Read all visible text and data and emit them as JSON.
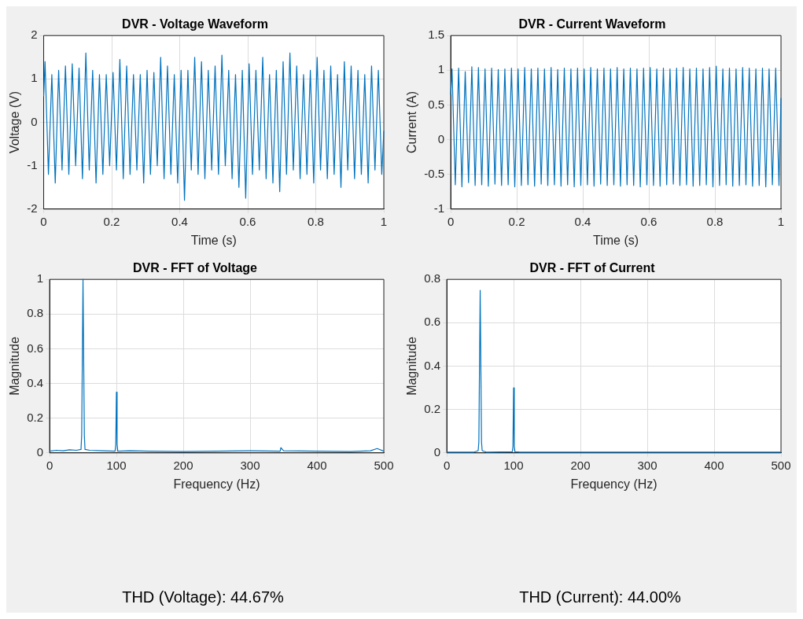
{
  "chart_data": [
    {
      "type": "line",
      "title": "DVR - Voltage Waveform",
      "xlabel": "Time (s)",
      "ylabel": "Voltage (V)",
      "xlim": [
        0,
        1
      ],
      "xticks": [
        0,
        0.2,
        0.4,
        0.6,
        0.8,
        1
      ],
      "ylim": [
        -2,
        2
      ],
      "yticks": [
        -2,
        -1,
        0,
        1,
        2
      ],
      "grid": true,
      "series": [
        {
          "color": "#0072bd",
          "x": [
            0,
            0.004,
            0.014,
            0.024,
            0.034,
            0.044,
            0.054,
            0.064,
            0.074,
            0.084,
            0.094,
            0.104,
            0.114,
            0.124,
            0.134,
            0.144,
            0.154,
            0.164,
            0.174,
            0.184,
            0.194,
            0.204,
            0.214,
            0.224,
            0.234,
            0.244,
            0.254,
            0.264,
            0.274,
            0.284,
            0.294,
            0.304,
            0.314,
            0.324,
            0.334,
            0.344,
            0.354,
            0.364,
            0.374,
            0.384,
            0.394,
            0.404,
            0.414,
            0.424,
            0.434,
            0.444,
            0.454,
            0.464,
            0.474,
            0.484,
            0.494,
            0.504,
            0.514,
            0.524,
            0.534,
            0.544,
            0.554,
            0.564,
            0.574,
            0.584,
            0.594,
            0.604,
            0.614,
            0.624,
            0.634,
            0.644,
            0.654,
            0.664,
            0.674,
            0.684,
            0.694,
            0.704,
            0.714,
            0.724,
            0.734,
            0.744,
            0.754,
            0.764,
            0.774,
            0.784,
            0.794,
            0.804,
            0.814,
            0.824,
            0.834,
            0.844,
            0.854,
            0.864,
            0.874,
            0.884,
            0.894,
            0.904,
            0.914,
            0.924,
            0.934,
            0.944,
            0.954,
            0.964,
            0.974,
            0.984,
            0.994,
            1
          ],
          "values": [
            0.6,
            1.4,
            -1.2,
            1.1,
            -1.4,
            1.2,
            -1.1,
            1.3,
            -1.2,
            1.35,
            -1.0,
            1.25,
            -1.3,
            1.6,
            -1.1,
            1.2,
            -1.4,
            1.1,
            -1.2,
            1.1,
            -1.0,
            1.15,
            -1.1,
            1.45,
            -1.3,
            1.3,
            -1.2,
            1.1,
            -1.1,
            1.1,
            -1.4,
            1.2,
            -1.2,
            1.15,
            -1.0,
            1.5,
            -1.3,
            1.3,
            -1.2,
            1.1,
            -1.4,
            1.2,
            -1.8,
            1.2,
            -1.1,
            1.5,
            -1.2,
            1.4,
            -1.3,
            1.2,
            -1.1,
            1.3,
            -1.2,
            1.55,
            -1.0,
            1.2,
            -1.3,
            1.1,
            -1.5,
            1.2,
            -1.75,
            1.35,
            -1.2,
            1.2,
            -1.1,
            1.5,
            -1.3,
            1.1,
            -1.4,
            1.2,
            -1.6,
            1.4,
            -1.2,
            1.6,
            -1.1,
            1.3,
            -1.3,
            1.1,
            -1.2,
            1.2,
            -1.4,
            1.5,
            -1.1,
            1.2,
            -1.3,
            1.3,
            -1.2,
            1.1,
            -1.5,
            1.4,
            -1.1,
            1.3,
            -1.3,
            1.2,
            -1.2,
            1.1,
            -1.4,
            1.3,
            -1.1,
            1.2,
            -1.2,
            -0.2
          ]
        }
      ]
    },
    {
      "type": "line",
      "title": "DVR - Current Waveform",
      "xlabel": "Time (s)",
      "ylabel": "Current (A)",
      "xlim": [
        0,
        1
      ],
      "xticks": [
        0,
        0.2,
        0.4,
        0.6,
        0.8,
        1
      ],
      "ylim": [
        -1,
        1.5
      ],
      "yticks": [
        -1,
        -0.5,
        0,
        0.5,
        1,
        1.5
      ],
      "grid": true,
      "series": [
        {
          "color": "#0072bd",
          "x": [
            0,
            0.004,
            0.014,
            0.024,
            0.034,
            0.044,
            0.054,
            0.064,
            0.074,
            0.084,
            0.094,
            0.104,
            0.114,
            0.124,
            0.134,
            0.144,
            0.154,
            0.164,
            0.174,
            0.184,
            0.194,
            0.204,
            0.214,
            0.224,
            0.234,
            0.244,
            0.254,
            0.264,
            0.274,
            0.284,
            0.294,
            0.304,
            0.314,
            0.324,
            0.334,
            0.344,
            0.354,
            0.364,
            0.374,
            0.384,
            0.394,
            0.404,
            0.414,
            0.424,
            0.434,
            0.444,
            0.454,
            0.464,
            0.474,
            0.484,
            0.494,
            0.504,
            0.514,
            0.524,
            0.534,
            0.544,
            0.554,
            0.564,
            0.574,
            0.584,
            0.594,
            0.604,
            0.614,
            0.624,
            0.634,
            0.644,
            0.654,
            0.664,
            0.674,
            0.684,
            0.694,
            0.704,
            0.714,
            0.724,
            0.734,
            0.744,
            0.754,
            0.764,
            0.774,
            0.784,
            0.794,
            0.804,
            0.814,
            0.824,
            0.834,
            0.844,
            0.854,
            0.864,
            0.874,
            0.884,
            0.894,
            0.904,
            0.914,
            0.924,
            0.934,
            0.944,
            0.954,
            0.964,
            0.974,
            0.984,
            0.994,
            1
          ],
          "values": [
            0.65,
            1.02,
            -0.65,
            1.03,
            -0.68,
            0.98,
            -0.62,
            1.05,
            -0.66,
            1.04,
            -0.65,
            1.02,
            -0.67,
            1.03,
            -0.64,
            1.01,
            -0.66,
            1.02,
            -0.65,
            1.03,
            -0.68,
            1.02,
            -0.66,
            1.04,
            -0.65,
            1.02,
            -0.67,
            1.03,
            -0.64,
            1.02,
            -0.66,
            1.04,
            -0.65,
            1.01,
            -0.67,
            1.03,
            -0.65,
            1.02,
            -0.68,
            1.03,
            -0.66,
            1.02,
            -0.65,
            1.04,
            -0.67,
            1.02,
            -0.64,
            1.03,
            -0.66,
            1.02,
            -0.65,
            1.04,
            -0.67,
            1.02,
            -0.65,
            1.03,
            -0.66,
            1.02,
            -0.68,
            1.03,
            -0.65,
            1.04,
            -0.66,
            1.02,
            -0.67,
            1.03,
            -0.65,
            1.02,
            -0.64,
            1.03,
            -0.66,
            1.04,
            -0.65,
            1.02,
            -0.67,
            1.03,
            -0.66,
            1.02,
            -0.65,
            1.04,
            -0.68,
            1.06,
            -0.66,
            1.02,
            -0.65,
            1.03,
            -0.67,
            1.02,
            -0.66,
            1.04,
            -0.65,
            1.03,
            -0.67,
            1.02,
            -0.66,
            1.03,
            -0.68,
            1.02,
            -0.65,
            1.03,
            -0.66,
            0.6
          ]
        }
      ]
    },
    {
      "type": "line",
      "title": "DVR - FFT of Voltage",
      "xlabel": "Frequency (Hz)",
      "ylabel": "Magnitude",
      "xlim": [
        0,
        500
      ],
      "xticks": [
        0,
        100,
        200,
        300,
        400,
        500
      ],
      "ylim": [
        0,
        1
      ],
      "yticks": [
        0,
        0.2,
        0.4,
        0.6,
        0.8,
        1
      ],
      "grid": true,
      "annotations": [
        "THD (Voltage): 44.67%"
      ],
      "series": [
        {
          "color": "#0072bd",
          "x": [
            0,
            10,
            20,
            30,
            40,
            47,
            48,
            50,
            52,
            53,
            60,
            80,
            98,
            99,
            100,
            101,
            102,
            120,
            150,
            200,
            250,
            300,
            345,
            346,
            350,
            400,
            450,
            480,
            490,
            500
          ],
          "values": [
            0.01,
            0.015,
            0.012,
            0.018,
            0.015,
            0.02,
            0.1,
            1,
            0.1,
            0.02,
            0.015,
            0.012,
            0.01,
            0.05,
            0.35,
            0.05,
            0.01,
            0.012,
            0.01,
            0.008,
            0.01,
            0.012,
            0.01,
            0.03,
            0.012,
            0.01,
            0.008,
            0.012,
            0.025,
            0.01
          ]
        }
      ]
    },
    {
      "type": "line",
      "title": "DVR - FFT of Current",
      "xlabel": "Frequency (Hz)",
      "ylabel": "Magnitude",
      "xlim": [
        0,
        500
      ],
      "xticks": [
        0,
        100,
        200,
        300,
        400,
        500
      ],
      "ylim": [
        0,
        0.8
      ],
      "yticks": [
        0,
        0.2,
        0.4,
        0.6,
        0.8
      ],
      "grid": true,
      "annotations": [
        "THD (Current): 44.00%"
      ],
      "series": [
        {
          "color": "#0072bd",
          "x": [
            0,
            40,
            47,
            48,
            50,
            52,
            53,
            60,
            98,
            99,
            100,
            101,
            102,
            110,
            150,
            250,
            350,
            450,
            500
          ],
          "values": [
            0.003,
            0.003,
            0.01,
            0.05,
            0.75,
            0.05,
            0.01,
            0.003,
            0.005,
            0.03,
            0.3,
            0.03,
            0.005,
            0.003,
            0.003,
            0.003,
            0.003,
            0.003,
            0.003
          ]
        }
      ]
    }
  ]
}
